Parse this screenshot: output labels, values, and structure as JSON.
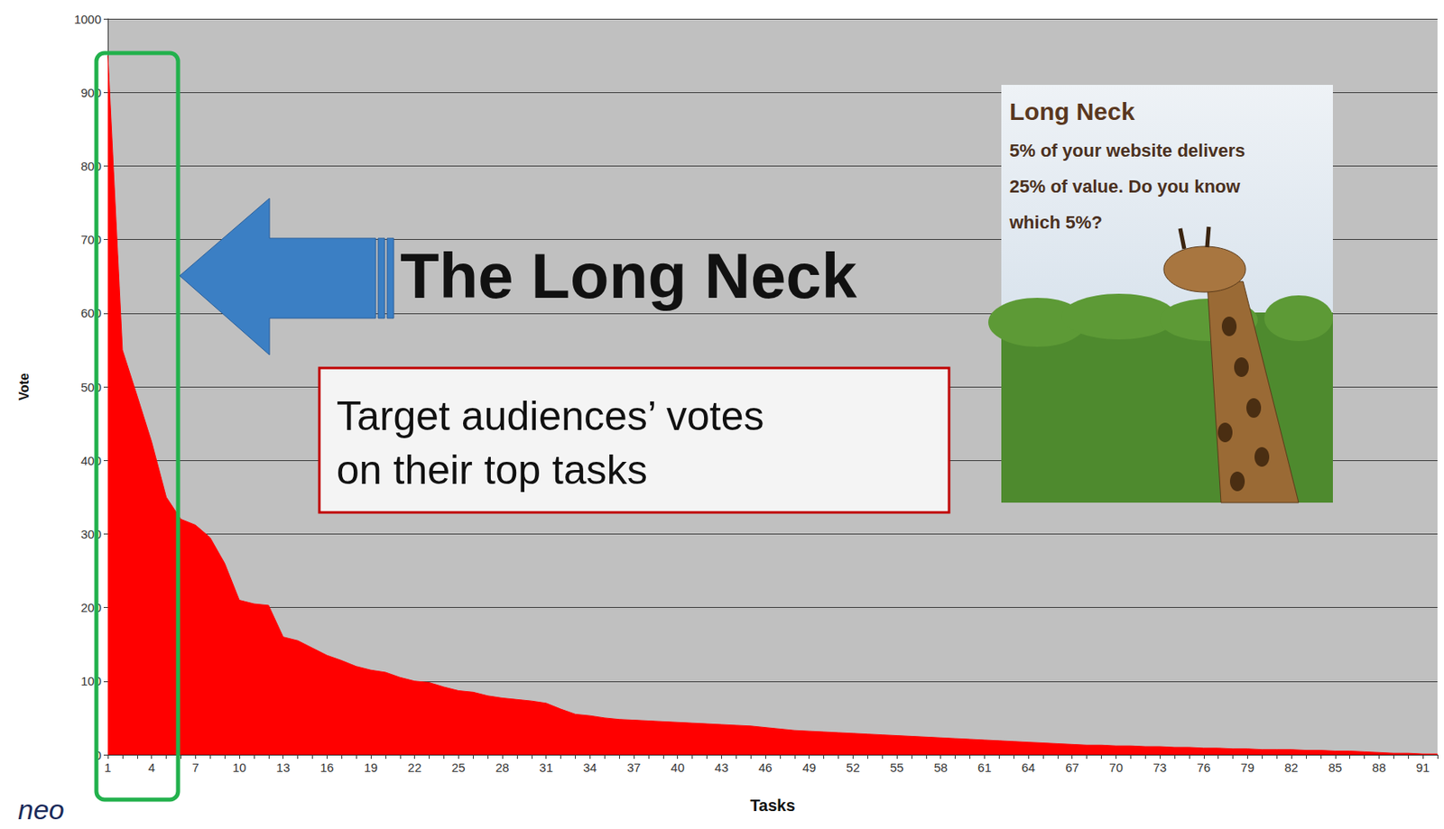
{
  "chart_data": {
    "type": "area",
    "categories": [
      1,
      null,
      null,
      4,
      null,
      null,
      7,
      null,
      null,
      10,
      null,
      null,
      13,
      null,
      null,
      16,
      null,
      null,
      19,
      null,
      null,
      22,
      null,
      null,
      25,
      null,
      null,
      28,
      null,
      null,
      31,
      null,
      null,
      34,
      null,
      null,
      37,
      null,
      null,
      40,
      null,
      null,
      43,
      null,
      null,
      46,
      null,
      null,
      49,
      null,
      null,
      52,
      null,
      null,
      55,
      null,
      null,
      58,
      null,
      null,
      61,
      null,
      null,
      64,
      null,
      null,
      67,
      null,
      null,
      70,
      null,
      null,
      73,
      null,
      null,
      76,
      null,
      null,
      79,
      null,
      null,
      82,
      null,
      null,
      85,
      null,
      null,
      88,
      null,
      null,
      91,
      null
    ],
    "values": [
      950,
      550,
      488,
      425,
      350,
      320,
      312,
      295,
      260,
      210,
      205,
      203,
      160,
      155,
      145,
      135,
      128,
      120,
      115,
      112,
      105,
      100,
      98,
      92,
      87,
      85,
      80,
      77,
      75,
      73,
      70,
      62,
      55,
      53,
      50,
      48,
      47,
      46,
      45,
      44,
      43,
      42,
      41,
      40,
      39,
      37,
      35,
      33,
      32,
      31,
      30,
      29,
      28,
      27,
      26,
      25,
      24,
      23,
      22,
      21,
      20,
      19,
      18,
      17,
      16,
      15,
      14,
      13,
      13,
      12,
      12,
      11,
      11,
      10,
      10,
      9,
      9,
      8,
      8,
      7,
      7,
      7,
      6,
      6,
      5,
      5,
      4,
      3,
      2,
      2,
      1,
      1
    ],
    "color": "#ff0000",
    "ylim": [
      0,
      1000
    ],
    "yticks": [
      0,
      100,
      200,
      300,
      400,
      500,
      600,
      700,
      800,
      900,
      1000
    ],
    "grid": true,
    "xlabel": "Tasks",
    "ylabel": "Vote",
    "annotations": {
      "callout": "The Long Neck",
      "box_text": [
        "Target audiences’ votes",
        "on their top tasks"
      ],
      "panel_title": "Long Neck",
      "panel_text": [
        "5% of your website delivers",
        "25% of value. Do you know",
        "which 5%?"
      ],
      "logo": "neo"
    }
  }
}
